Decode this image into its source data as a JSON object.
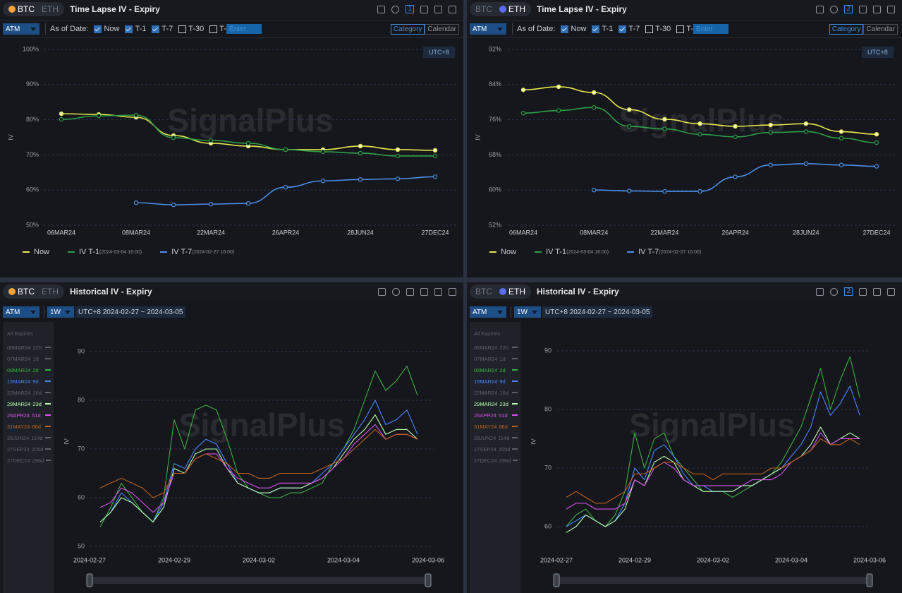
{
  "watermark": "SignalPlus",
  "panels": [
    {
      "coins": [
        "BTC",
        "ETH"
      ],
      "active_coin": "BTC",
      "title": "Time Lapse IV - Expiry",
      "badge": "1",
      "strike_select": "ATM",
      "as_of_label": "As of Date:",
      "checkboxes": [
        {
          "label": "Now",
          "checked": true
        },
        {
          "label": "T-1",
          "checked": true
        },
        {
          "label": "T-7",
          "checked": true
        },
        {
          "label": "T-30",
          "checked": false
        },
        {
          "label": "T-",
          "checked": false
        }
      ],
      "input_placeholder": "Enter",
      "modes": [
        "Category",
        "Calendar"
      ],
      "active_mode": "Category",
      "timezone": "UTC+8"
    },
    {
      "coins": [
        "BTC",
        "ETH"
      ],
      "active_coin": "ETH",
      "title": "Time Lapse IV - Expiry",
      "badge": "2",
      "strike_select": "ATM",
      "as_of_label": "As of Date:",
      "checkboxes": [
        {
          "label": "Now",
          "checked": true
        },
        {
          "label": "T-1",
          "checked": true
        },
        {
          "label": "T-7",
          "checked": true
        },
        {
          "label": "T-30",
          "checked": false
        },
        {
          "label": "T-",
          "checked": false
        }
      ],
      "input_placeholder": "Enter",
      "modes": [
        "Category",
        "Calendar"
      ],
      "active_mode": "Category",
      "timezone": "UTC+8"
    },
    {
      "coins": [
        "BTC",
        "ETH"
      ],
      "active_coin": "BTC",
      "title": "Historical IV - Expiry",
      "strike_select": "ATM",
      "window_select": "1W",
      "range_label": "UTC+8 2024-02-27 ~ 2024-03-05"
    },
    {
      "coins": [
        "BTC",
        "ETH"
      ],
      "active_coin": "ETH",
      "title": "Historical IV - Expiry",
      "badge": "2",
      "strike_select": "ATM",
      "window_select": "1W",
      "range_label": "UTC+8 2024-02-27 ~ 2024-03-05"
    }
  ],
  "chart_data": [
    {
      "type": "line",
      "ylabel": "IV",
      "smooth": true,
      "markers": true,
      "categories": [
        "06MAR24",
        null,
        "08MAR24",
        null,
        "22MAR24",
        null,
        "26APR24",
        null,
        "28JUN24",
        null,
        "27DEC24"
      ],
      "ylim": [
        50,
        100
      ],
      "yticks": [
        {
          "value": 50,
          "label": "50%"
        },
        {
          "value": 60,
          "label": "60%"
        },
        {
          "value": 70,
          "label": "70%"
        },
        {
          "value": 80,
          "label": "80%"
        },
        {
          "value": 90,
          "label": "90%"
        },
        {
          "value": 100,
          "label": "100%"
        }
      ],
      "grid": true,
      "series": [
        {
          "name": "Now",
          "color": "#e6e64c",
          "values": [
            81.7,
            81.5,
            80.7,
            75.5,
            73.3,
            72.5,
            71.5,
            71.5,
            72.5,
            71.5,
            71.3
          ]
        },
        {
          "name": "IV T-1",
          "timestamp": "(2024-03-04 16:00)",
          "color": "#2e9e48",
          "values": [
            80.1,
            81.1,
            81.3,
            74.9,
            74.1,
            73.3,
            71.5,
            70.9,
            70.5,
            69.7,
            69.7
          ]
        },
        {
          "name": "IV T-7",
          "timestamp": "(2024-02-27 16:00)",
          "color": "#4a8fe8",
          "values": [
            null,
            null,
            56.4,
            55.8,
            56.0,
            56.2,
            60.8,
            62.6,
            63.0,
            63.2,
            63.8
          ]
        }
      ]
    },
    {
      "type": "line",
      "ylabel": "IV",
      "smooth": true,
      "markers": true,
      "categories": [
        "06MAR24",
        null,
        "08MAR24",
        null,
        "22MAR24",
        null,
        "26APR24",
        null,
        "28JUN24",
        null,
        "27DEC24"
      ],
      "ylim": [
        52,
        92
      ],
      "yticks": [
        {
          "value": 52,
          "label": "52%"
        },
        {
          "value": 60,
          "label": "60%"
        },
        {
          "value": 68,
          "label": "68%"
        },
        {
          "value": 76,
          "label": "76%"
        },
        {
          "value": 84,
          "label": "84%"
        },
        {
          "value": 92,
          "label": "92%"
        }
      ],
      "grid": true,
      "series": [
        {
          "name": "Now",
          "color": "#e6e64c",
          "values": [
            82.8,
            83.5,
            82.2,
            78.3,
            76.1,
            75.1,
            74.5,
            74.8,
            75.1,
            73.3,
            72.7
          ]
        },
        {
          "name": "IV T-1",
          "timestamp": "(2024-03-04 16:00)",
          "color": "#2e9e48",
          "values": [
            77.5,
            78.1,
            78.8,
            74.5,
            73.9,
            72.7,
            72.1,
            73.1,
            73.3,
            71.8,
            70.8
          ]
        },
        {
          "name": "IV T-7",
          "timestamp": "(2024-02-27 16:00)",
          "color": "#4a8fe8",
          "values": [
            null,
            null,
            60.0,
            59.8,
            59.7,
            59.7,
            63.0,
            65.7,
            66.0,
            65.7,
            65.4
          ]
        }
      ]
    },
    {
      "type": "line",
      "ylabel": "IV",
      "smooth": false,
      "markers": false,
      "legend_title": "All Expiries",
      "x": [
        "2024-02-27 06:00",
        "2024-02-27 12:00",
        "2024-02-27 18:00",
        "2024-02-28 00:00",
        "2024-02-28 06:00",
        "2024-02-28 12:00",
        "2024-02-28 18:00",
        "2024-02-29 00:00",
        "2024-02-29 06:00",
        "2024-02-29 12:00",
        "2024-02-29 18:00",
        "2024-03-01 00:00",
        "2024-03-01 06:00",
        "2024-03-01 12:00",
        "2024-03-01 18:00",
        "2024-03-02 00:00",
        "2024-03-02 06:00",
        "2024-03-02 12:00",
        "2024-03-02 18:00",
        "2024-03-03 00:00",
        "2024-03-03 06:00",
        "2024-03-03 12:00",
        "2024-03-03 18:00",
        "2024-03-04 00:00",
        "2024-03-04 06:00",
        "2024-03-04 12:00",
        "2024-03-04 18:00",
        "2024-03-05 00:00",
        "2024-03-05 06:00",
        "2024-03-05 12:00",
        "2024-03-05 18:00"
      ],
      "xlim": [
        "2024-02-27",
        "2024-03-06"
      ],
      "xticks": [
        "2024-02-27",
        "2024-02-29",
        "2024-03-02",
        "2024-03-04",
        "2024-03-06"
      ],
      "ylim": [
        48,
        95
      ],
      "yticks": [
        50,
        60,
        70,
        80,
        90
      ],
      "grid": true,
      "series": [
        {
          "name": "06MAR24",
          "tenor": "22h",
          "color": "#6f747d",
          "visible": false
        },
        {
          "name": "07MAR24",
          "tenor": "1d",
          "color": "#6f747d",
          "visible": false
        },
        {
          "name": "08MAR24",
          "tenor": "2d",
          "color": "#3cb043",
          "visible": true,
          "values": [
            54,
            58,
            63,
            60,
            57,
            55,
            60,
            76,
            70,
            78,
            79,
            78,
            72,
            65,
            62,
            61,
            60,
            60,
            61,
            61,
            62,
            63,
            67,
            70,
            74,
            80,
            86,
            82,
            84,
            87,
            81
          ]
        },
        {
          "name": "15MAR24",
          "tenor": "9d",
          "color": "#4a86ff",
          "visible": true,
          "values": [
            55,
            57,
            61,
            59,
            57,
            55,
            59,
            67,
            66,
            70,
            72,
            71,
            67,
            63,
            62,
            61,
            61,
            62,
            62,
            62,
            63,
            65,
            67,
            70,
            73,
            76,
            80,
            75,
            76,
            78,
            73
          ]
        },
        {
          "name": "22MAR24",
          "tenor": "16d",
          "color": "#6f747d",
          "visible": false
        },
        {
          "name": "29MAR24",
          "tenor": "23d",
          "color": "#b8ffb0",
          "visible": true,
          "values": [
            55,
            57,
            60,
            59,
            57,
            55,
            58,
            66,
            65,
            69,
            70,
            70,
            66,
            63,
            62,
            61,
            61,
            62,
            62,
            62,
            63,
            64,
            66,
            69,
            72,
            74,
            77,
            73,
            74,
            74,
            72
          ]
        },
        {
          "name": "26APR24",
          "tenor": "51d",
          "color": "#d94ff0",
          "visible": true,
          "values": [
            58,
            59,
            62,
            61,
            59,
            57,
            59,
            65,
            65,
            68,
            69,
            69,
            66,
            64,
            63,
            62,
            62,
            63,
            63,
            63,
            63,
            64,
            66,
            68,
            71,
            73,
            75,
            72,
            73,
            73,
            72
          ]
        },
        {
          "name": "31MAY24",
          "tenor": "86d",
          "color": "#c0601a",
          "visible": true,
          "values": [
            62,
            63,
            64,
            63,
            62,
            60,
            61,
            65,
            65,
            68,
            69,
            68,
            67,
            65,
            65,
            64,
            64,
            65,
            65,
            65,
            65,
            66,
            67,
            68,
            70,
            72,
            74,
            72,
            73,
            73,
            72
          ]
        },
        {
          "name": "28JUN24",
          "tenor": "114d",
          "color": "#6f747d",
          "visible": false
        },
        {
          "name": "27SEP24",
          "tenor": "205d",
          "color": "#6f747d",
          "visible": false
        },
        {
          "name": "27DEC24",
          "tenor": "296d",
          "color": "#6f747d",
          "visible": false
        }
      ]
    },
    {
      "type": "line",
      "ylabel": "IV",
      "smooth": false,
      "markers": false,
      "legend_title": "All Expiries",
      "x": [
        "2024-02-27 06:00",
        "2024-02-27 12:00",
        "2024-02-27 18:00",
        "2024-02-28 00:00",
        "2024-02-28 06:00",
        "2024-02-28 12:00",
        "2024-02-28 18:00",
        "2024-02-29 00:00",
        "2024-02-29 06:00",
        "2024-02-29 12:00",
        "2024-02-29 18:00",
        "2024-03-01 00:00",
        "2024-03-01 06:00",
        "2024-03-01 12:00",
        "2024-03-01 18:00",
        "2024-03-02 00:00",
        "2024-03-02 06:00",
        "2024-03-02 12:00",
        "2024-03-02 18:00",
        "2024-03-03 00:00",
        "2024-03-03 06:00",
        "2024-03-03 12:00",
        "2024-03-03 18:00",
        "2024-03-04 00:00",
        "2024-03-04 06:00",
        "2024-03-04 12:00",
        "2024-03-04 18:00",
        "2024-03-05 00:00",
        "2024-03-05 06:00",
        "2024-03-05 12:00",
        "2024-03-05 18:00"
      ],
      "xlim": [
        "2024-02-27",
        "2024-03-06"
      ],
      "xticks": [
        "2024-02-27",
        "2024-02-29",
        "2024-03-02",
        "2024-03-04",
        "2024-03-06"
      ],
      "ylim": [
        55,
        94
      ],
      "yticks": [
        60,
        70,
        80,
        90
      ],
      "grid": true,
      "series": [
        {
          "name": "06MAR24",
          "tenor": "22h",
          "color": "#6f747d",
          "visible": false
        },
        {
          "name": "07MAR24",
          "tenor": "1d",
          "color": "#6f747d",
          "visible": false
        },
        {
          "name": "08MAR24",
          "tenor": "2d",
          "color": "#3cb043",
          "visible": true,
          "values": [
            60,
            62,
            63,
            61,
            60,
            62,
            66,
            76,
            70,
            75,
            76,
            72,
            70,
            68,
            66,
            66,
            66,
            65,
            66,
            67,
            68,
            69,
            71,
            74,
            77,
            82,
            87,
            80,
            85,
            89,
            82
          ]
        },
        {
          "name": "15MAR24",
          "tenor": "9d",
          "color": "#4a86ff",
          "visible": true,
          "values": [
            60,
            61,
            62,
            61,
            60,
            61,
            64,
            70,
            68,
            73,
            74,
            72,
            69,
            67,
            67,
            66,
            66,
            66,
            67,
            67,
            68,
            69,
            70,
            72,
            74,
            77,
            83,
            79,
            81,
            84,
            79
          ]
        },
        {
          "name": "22MAR24",
          "tenor": "16d",
          "color": "#6f747d",
          "visible": false
        },
        {
          "name": "29MAR24",
          "tenor": "23d",
          "color": "#b8ffb0",
          "visible": true,
          "values": [
            59,
            60,
            62,
            61,
            60,
            61,
            63,
            68,
            67,
            71,
            72,
            71,
            68,
            67,
            66,
            66,
            66,
            66,
            67,
            67,
            68,
            69,
            70,
            71,
            72,
            74,
            77,
            74,
            75,
            76,
            75
          ]
        },
        {
          "name": "26APR24",
          "tenor": "51d",
          "color": "#d94ff0",
          "visible": true,
          "values": [
            63,
            64,
            64,
            63,
            63,
            63,
            64,
            68,
            67,
            70,
            71,
            70,
            68,
            67,
            67,
            67,
            67,
            67,
            67,
            68,
            68,
            68,
            69,
            71,
            72,
            73,
            76,
            74,
            75,
            75,
            75
          ]
        },
        {
          "name": "31MAY24",
          "tenor": "86d",
          "color": "#c0601a",
          "visible": true,
          "values": [
            65,
            66,
            65,
            64,
            64,
            65,
            66,
            69,
            69,
            70,
            71,
            71,
            70,
            69,
            69,
            68,
            69,
            69,
            69,
            69,
            69,
            70,
            70,
            71,
            72,
            73,
            75,
            74,
            74,
            75,
            74
          ]
        },
        {
          "name": "28JUN24",
          "tenor": "114d",
          "color": "#6f747d",
          "visible": false
        },
        {
          "name": "27SEP24",
          "tenor": "205d",
          "color": "#6f747d",
          "visible": false
        },
        {
          "name": "27DEC24",
          "tenor": "296d",
          "color": "#6f747d",
          "visible": false
        }
      ]
    }
  ]
}
